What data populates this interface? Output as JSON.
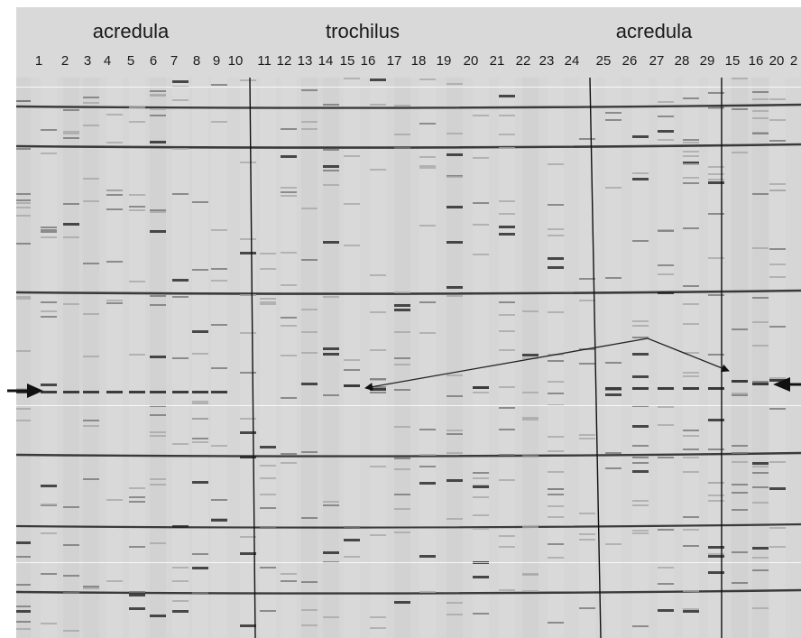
{
  "figure": {
    "groups": [
      {
        "label": "acredula",
        "lanes": [
          "1",
          "2",
          "3",
          "4",
          "5",
          "6",
          "7",
          "8",
          "9",
          "10"
        ]
      },
      {
        "label": "trochilus",
        "lanes": [
          "11",
          "12",
          "13",
          "14",
          "15",
          "16",
          "17",
          "18",
          "19",
          "20",
          "21",
          "22",
          "23",
          "24"
        ]
      },
      {
        "label": "acredula",
        "lanes": [
          "25",
          "26",
          "27",
          "28",
          "29",
          "15",
          "16",
          "20",
          "2"
        ]
      }
    ],
    "colors": {
      "gel_background": "#d6d6d6",
      "header_background": "#d9d9d9",
      "band_dark": "#1f1f1f",
      "marker_arrows": "#111111"
    },
    "annotations": {
      "left_marker": "arrow-right-icon",
      "right_marker": "arrow-left-icon",
      "connector": "double-headed-arrow"
    }
  }
}
